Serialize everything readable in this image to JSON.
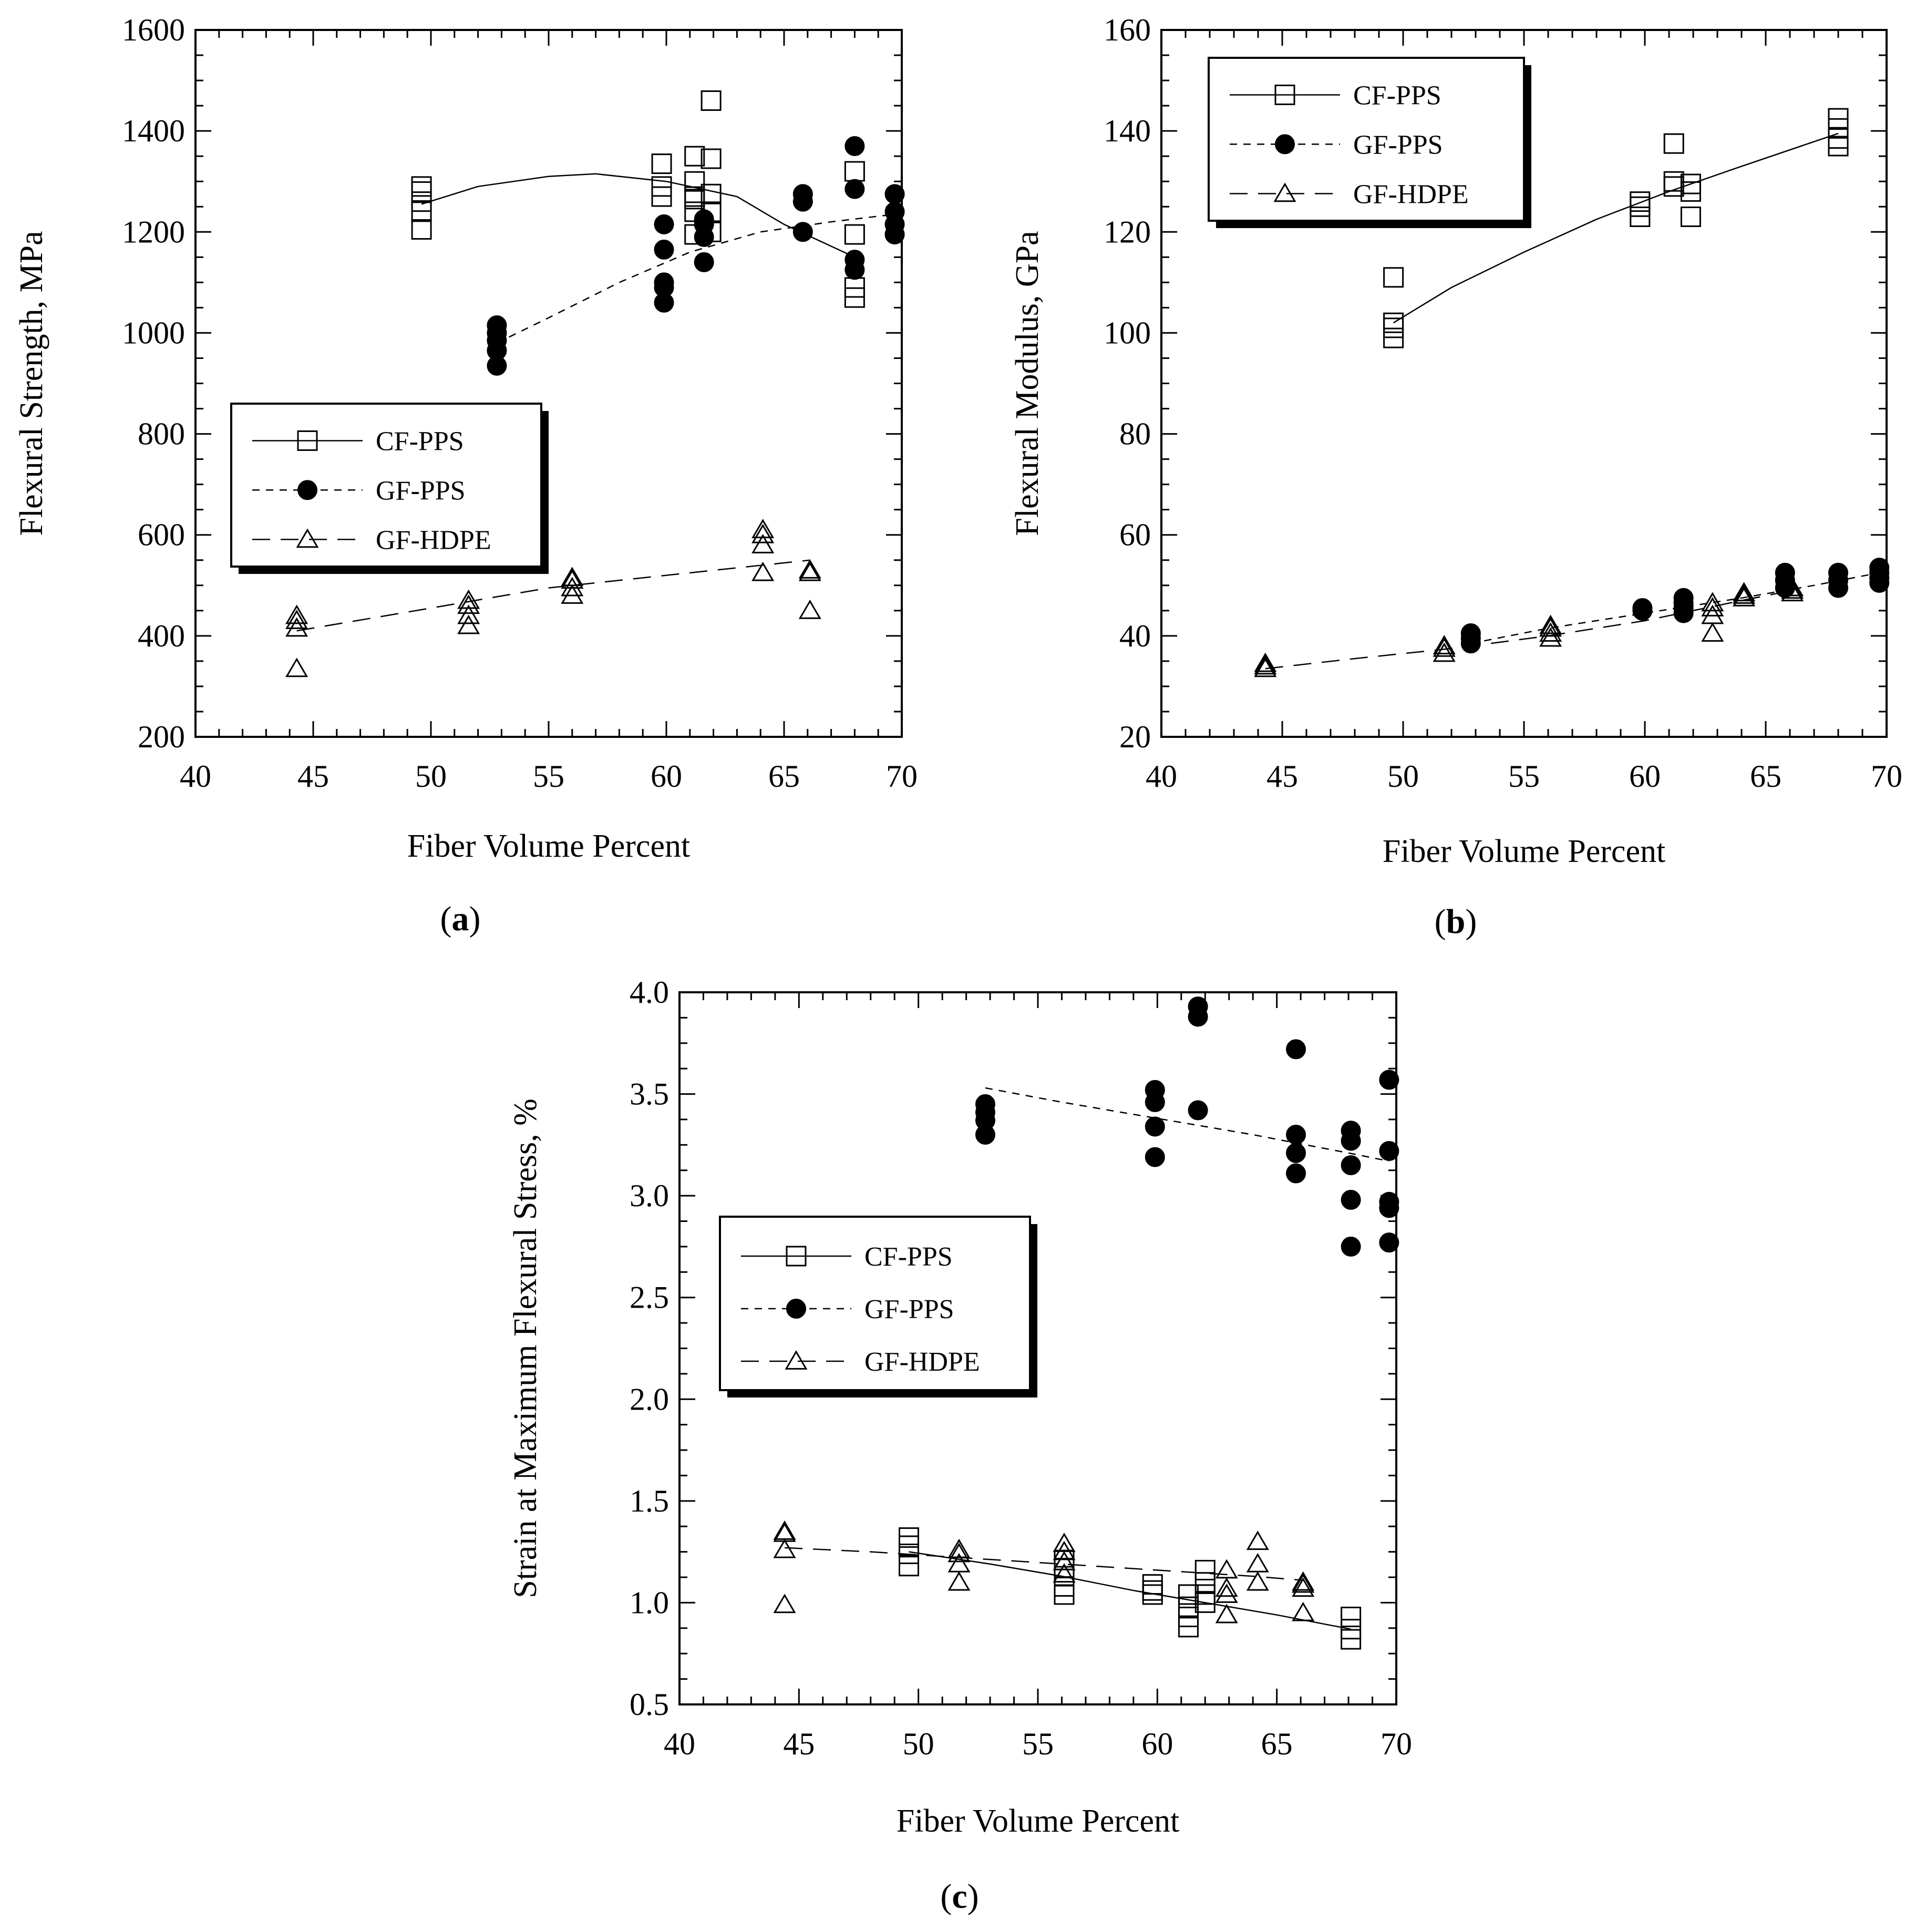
{
  "chart_data": [
    {
      "id": "a",
      "type": "scatter",
      "panel_label": "a",
      "xlabel": "Fiber Volume Percent",
      "ylabel": "Flexural Strength, MPa",
      "xlim": [
        40,
        70
      ],
      "ylim": [
        200,
        1600
      ],
      "xticks": [
        40,
        45,
        50,
        55,
        60,
        65,
        70
      ],
      "yticks": [
        200,
        400,
        600,
        800,
        1000,
        1200,
        1400,
        1600
      ],
      "legend_placement": "center-left",
      "series": [
        {
          "name": "CF-PPS",
          "marker": "square",
          "line": "solid",
          "x": [
            49.6,
            49.6,
            49.6,
            49.6,
            49.6,
            59.8,
            59.8,
            59.8,
            61.2,
            61.2,
            61.2,
            61.2,
            61.2,
            61.2,
            61.9,
            61.9,
            61.9,
            61.9,
            61.9,
            68.0,
            68.0,
            68.0,
            68.0
          ],
          "y": [
            1205,
            1240,
            1260,
            1280,
            1290,
            1270,
            1290,
            1335,
            1195,
            1240,
            1270,
            1300,
            1350,
            1265,
            1200,
            1240,
            1275,
            1345,
            1460,
            1070,
            1090,
            1195,
            1320
          ],
          "fit": {
            "x": [
              49.6,
              52,
              55,
              57,
              60,
              63,
              65,
              68
            ],
            "y": [
              1255,
              1290,
              1310,
              1315,
              1300,
              1270,
              1215,
              1150
            ]
          }
        },
        {
          "name": "GF-PPS",
          "marker": "filled-circle",
          "line": "dashed",
          "x": [
            52.8,
            52.8,
            52.8,
            52.8,
            52.8,
            59.9,
            59.9,
            59.9,
            59.9,
            59.9,
            61.6,
            61.6,
            61.6,
            61.6,
            65.8,
            65.8,
            65.8,
            68.0,
            68.0,
            68.0,
            68.0,
            69.7,
            69.7,
            69.7,
            69.7
          ],
          "y": [
            935,
            965,
            985,
            1000,
            1015,
            1060,
            1090,
            1100,
            1165,
            1215,
            1140,
            1190,
            1215,
            1225,
            1200,
            1260,
            1275,
            1125,
            1145,
            1285,
            1370,
            1195,
            1215,
            1240,
            1275
          ],
          "fit": {
            "x": [
              52.8,
              55,
              58,
              61,
              64,
              67,
              69.7
            ],
            "y": [
              980,
              1030,
              1100,
              1160,
              1200,
              1220,
              1235
            ]
          }
        },
        {
          "name": "GF-HDPE",
          "marker": "triangle",
          "line": "long-dashed",
          "x": [
            44.3,
            44.3,
            44.3,
            44.3,
            51.6,
            51.6,
            51.6,
            51.6,
            56.0,
            56.0,
            56.0,
            56.0,
            64.1,
            64.1,
            64.1,
            64.1,
            66.1,
            66.1,
            66.1
          ],
          "y": [
            335,
            415,
            430,
            440,
            420,
            440,
            460,
            470,
            480,
            495,
            510,
            515,
            525,
            580,
            600,
            610,
            450,
            525,
            530
          ],
          "fit": {
            "x": [
              44.3,
              50,
              55,
              60,
              66.1
            ],
            "y": [
              410,
              455,
              495,
              520,
              550
            ]
          }
        }
      ]
    },
    {
      "id": "b",
      "type": "scatter",
      "panel_label": "b",
      "xlabel": "Fiber Volume Percent",
      "ylabel": "Flexural Modulus, GPa",
      "xlim": [
        40,
        70
      ],
      "ylim": [
        20,
        160
      ],
      "xticks": [
        40,
        45,
        50,
        55,
        60,
        65,
        70
      ],
      "yticks": [
        20,
        40,
        60,
        80,
        100,
        120,
        140,
        160
      ],
      "legend_placement": "top-left",
      "series": [
        {
          "name": "CF-PPS",
          "marker": "square",
          "line": "solid",
          "x": [
            49.6,
            49.6,
            49.6,
            49.6,
            59.8,
            59.8,
            59.8,
            61.2,
            61.2,
            61.2,
            61.9,
            61.9,
            61.9,
            68.0,
            68.0,
            68.0,
            68.0
          ],
          "y": [
            99,
            101,
            102,
            111,
            123,
            125,
            126,
            129,
            130,
            137.5,
            123,
            128,
            129.5,
            137,
            138.5,
            140.5,
            142.5
          ],
          "fit": {
            "x": [
              49.6,
              52,
              55,
              58,
              61,
              64,
              68
            ],
            "y": [
              102,
              109,
              116,
              122.5,
              128,
              133,
              139.5
            ]
          }
        },
        {
          "name": "GF-PPS",
          "marker": "filled-circle",
          "line": "dashed",
          "x": [
            52.8,
            52.8,
            52.8,
            59.9,
            59.9,
            61.6,
            61.6,
            61.6,
            61.6,
            65.8,
            65.8,
            65.8,
            68.0,
            68.0,
            68.0,
            69.7,
            69.7,
            69.7,
            69.7
          ],
          "y": [
            38.5,
            39.5,
            40.5,
            45,
            45.5,
            44.5,
            45.5,
            46.5,
            47.5,
            49.5,
            51,
            52.5,
            49.5,
            51,
            52.5,
            50.5,
            51.5,
            52.5,
            53.5
          ],
          "fit": {
            "x": [
              52.8,
              56,
              60,
              64,
              67,
              69.7
            ],
            "y": [
              38.5,
              41.5,
              44.5,
              47.5,
              50,
              52.5
            ]
          }
        },
        {
          "name": "GF-HDPE",
          "marker": "triangle",
          "line": "long-dashed",
          "x": [
            44.3,
            44.3,
            44.3,
            51.7,
            51.7,
            51.7,
            56.1,
            56.1,
            56.1,
            56.1,
            62.8,
            62.8,
            62.8,
            62.8,
            64.1,
            64.1,
            64.1,
            66.1,
            66.1,
            66.1
          ],
          "y": [
            33.5,
            34,
            34.5,
            36.5,
            37.5,
            38,
            39.5,
            40.5,
            41.5,
            42,
            40.5,
            44,
            45.5,
            46.5,
            47.5,
            48,
            48.5,
            48.5,
            49,
            49.5
          ],
          "fit": {
            "x": [
              44.3,
              48,
              52,
              56,
              60,
              64,
              66.1
            ],
            "y": [
              33.5,
              35.5,
              37.5,
              40,
              43,
              47,
              49
            ]
          }
        }
      ]
    },
    {
      "id": "c",
      "type": "scatter",
      "panel_label": "c",
      "xlabel": "Fiber Volume Percent",
      "ylabel": "Strain at Maximum Flexural Stress, %",
      "xlim": [
        40,
        70
      ],
      "ylim": [
        0.5,
        4.0
      ],
      "xticks": [
        40,
        45,
        50,
        55,
        60,
        65,
        70
      ],
      "yticks": [
        0.5,
        1.0,
        1.5,
        2.0,
        2.5,
        3.0,
        3.5,
        4.0
      ],
      "ytick_labels": [
        "0.5",
        "1.0",
        "1.5",
        "2.0",
        "2.5",
        "3.0",
        "3.5",
        "4.0"
      ],
      "legend_placement": "center-left",
      "series": [
        {
          "name": "CF-PPS",
          "marker": "square",
          "line": "solid",
          "x": [
            49.6,
            49.6,
            49.6,
            49.6,
            56.1,
            56.1,
            56.1,
            56.1,
            56.1,
            59.8,
            59.8,
            59.8,
            61.3,
            61.3,
            61.3,
            61.3,
            62.0,
            62.0,
            62.0,
            62.0,
            68.1,
            68.1,
            68.1
          ],
          "y": [
            1.18,
            1.24,
            1.28,
            1.32,
            1.04,
            1.08,
            1.13,
            1.17,
            1.21,
            1.04,
            1.06,
            1.09,
            0.88,
            0.93,
            0.98,
            1.04,
            1.0,
            1.04,
            1.1,
            1.16,
            0.82,
            0.87,
            0.93
          ],
          "fit": {
            "x": [
              49.6,
              53,
              56,
              59,
              62,
              65,
              68.1
            ],
            "y": [
              1.25,
              1.19,
              1.13,
              1.06,
              1.0,
              0.94,
              0.87
            ]
          }
        },
        {
          "name": "GF-PPS",
          "marker": "filled-circle",
          "line": "dashed",
          "x": [
            52.8,
            52.8,
            52.8,
            52.8,
            59.9,
            59.9,
            59.9,
            59.9,
            61.7,
            61.7,
            61.7,
            65.8,
            65.8,
            65.8,
            65.8,
            68.1,
            68.1,
            68.1,
            68.1,
            68.1,
            69.7,
            69.7,
            69.7,
            69.7,
            69.7
          ],
          "y": [
            3.3,
            3.37,
            3.41,
            3.45,
            3.19,
            3.34,
            3.46,
            3.52,
            3.42,
            3.88,
            3.93,
            3.11,
            3.21,
            3.3,
            3.72,
            2.75,
            2.98,
            3.15,
            3.27,
            3.32,
            2.77,
            2.94,
            2.97,
            3.22,
            3.57
          ],
          "fit": {
            "x": [
              52.8,
              56,
              60,
              64,
              68,
              69.7
            ],
            "y": [
              3.53,
              3.46,
              3.38,
              3.3,
              3.21,
              3.17
            ]
          }
        },
        {
          "name": "GF-HDPE",
          "marker": "triangle",
          "line": "long-dashed",
          "x": [
            44.4,
            44.4,
            44.4,
            44.4,
            51.7,
            51.7,
            51.7,
            51.7,
            56.1,
            56.1,
            56.1,
            56.1,
            62.9,
            62.9,
            62.9,
            62.9,
            64.2,
            64.2,
            64.2,
            66.1,
            66.1,
            66.1,
            66.1
          ],
          "y": [
            0.99,
            1.26,
            1.34,
            1.35,
            1.1,
            1.19,
            1.24,
            1.26,
            1.14,
            1.2,
            1.25,
            1.29,
            0.94,
            1.04,
            1.07,
            1.16,
            1.1,
            1.19,
            1.3,
            0.95,
            1.07,
            1.09,
            1.1
          ],
          "fit": {
            "x": [
              44.4,
              48,
              52,
              56,
              60,
              64,
              66.1
            ],
            "y": [
              1.27,
              1.25,
              1.22,
              1.19,
              1.16,
              1.13,
              1.11
            ]
          }
        }
      ]
    }
  ]
}
